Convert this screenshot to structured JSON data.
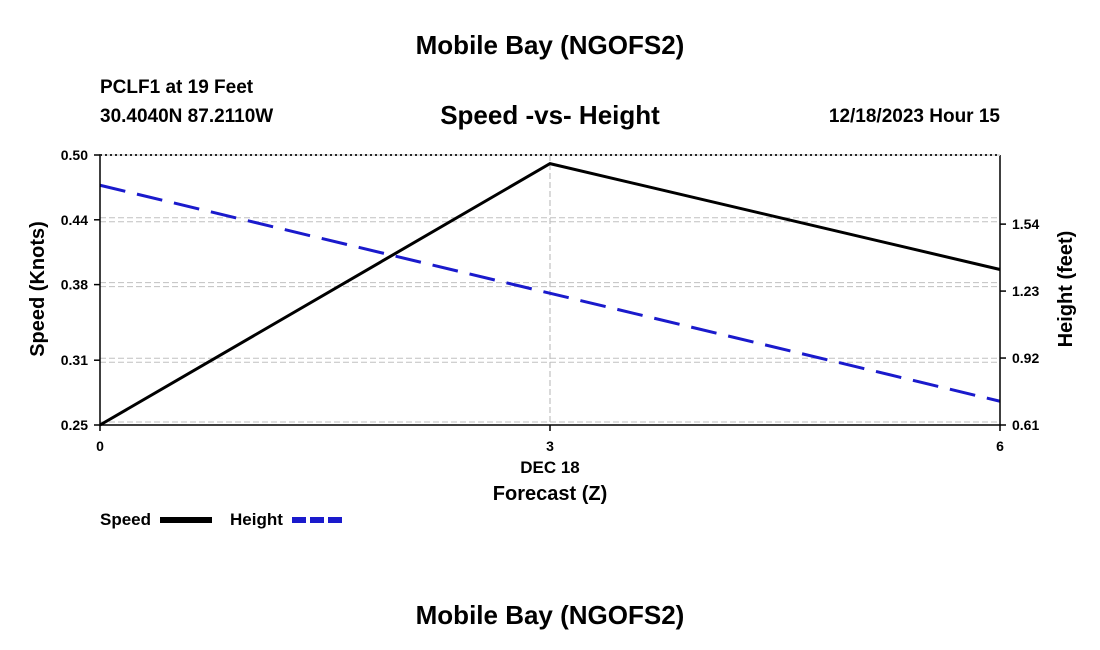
{
  "header": {
    "title": "Mobile Bay (NGOFS2)",
    "station": "PCLF1 at 19 Feet",
    "coords": "30.4040N  87.2110W",
    "subtitle": "Speed -vs- Height",
    "datetime": "12/18/2023 Hour 15"
  },
  "footer": {
    "title": "Mobile Bay (NGOFS2)"
  },
  "legend": {
    "speed_label": "Speed",
    "height_label": "Height"
  },
  "colors": {
    "speed": "#000000",
    "height": "#1a1acc",
    "grid": "#c0c0c0"
  },
  "chart_data": {
    "type": "line",
    "title": "Speed -vs- Height",
    "xlabel": "Forecast (Z)",
    "xlabel_date": "DEC 18",
    "ylabel": "Speed (Knots)",
    "ylabel_right": "Height (feet)",
    "x": [
      0,
      3,
      6
    ],
    "xlim": [
      0,
      6
    ],
    "x_ticks": [
      "0",
      "3",
      "6"
    ],
    "ylim": [
      0.25,
      0.5
    ],
    "y_ticks": [
      "0.50",
      "0.44",
      "0.38",
      "0.31",
      "0.25"
    ],
    "y_tick_values": [
      0.5,
      0.44,
      0.38,
      0.31,
      0.25
    ],
    "ylim_right": [
      0.61,
      1.86
    ],
    "y_ticks_right": [
      "1.54",
      "1.23",
      "0.92",
      "0.61"
    ],
    "y_tick_values_right": [
      1.54,
      1.23,
      0.92,
      0.61
    ],
    "grid": true,
    "series": [
      {
        "name": "Speed",
        "axis": "left",
        "style": "solid",
        "x": [
          0,
          3,
          6
        ],
        "values": [
          0.25,
          0.492,
          0.394
        ]
      },
      {
        "name": "Height",
        "axis": "right",
        "style": "dashed",
        "x": [
          0,
          6
        ],
        "values": [
          1.72,
          0.72
        ]
      }
    ]
  }
}
